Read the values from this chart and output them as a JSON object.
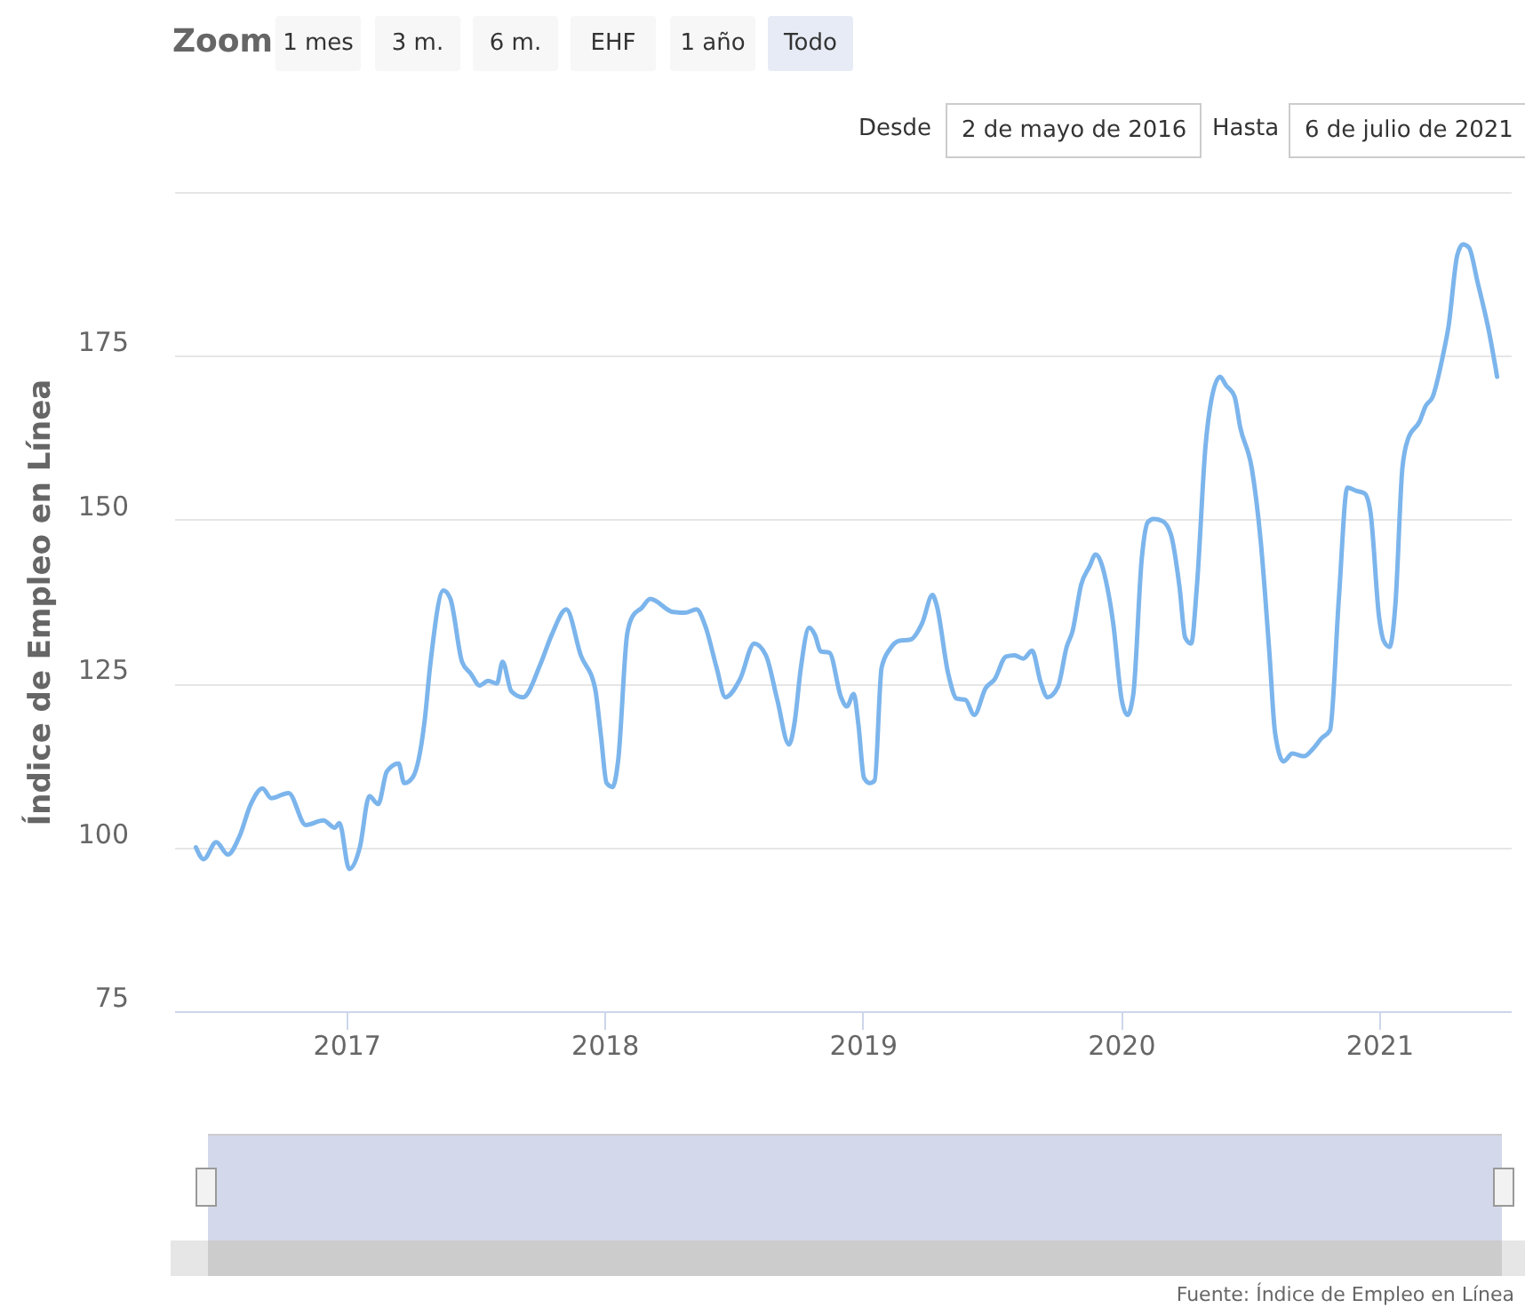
{
  "chart_data": {
    "type": "line",
    "ylabel": "Índice de Empleo en Línea",
    "xlim": [
      2016.333,
      2021.51
    ],
    "xticks": [
      2017,
      2018,
      2019,
      2020,
      2021
    ],
    "ylim": [
      75,
      200
    ],
    "yticks": [
      75,
      100,
      125,
      150,
      175,
      {
        "value": 200,
        "label": null
      }
    ],
    "grid": "y",
    "annotations": [
      "Zoom",
      "1 mes",
      "3 m.",
      "6 m.",
      "EHF",
      "1 año",
      "Todo",
      "Desde",
      "2 de mayo de 2016",
      "Hasta",
      "6 de julio de 2021",
      "Fuente: Índice de Empleo en Línea"
    ],
    "series": [
      {
        "color": "#7cb5ec",
        "x": [
          2016.417,
          2016.447,
          2016.496,
          2016.541,
          2016.585,
          2016.63,
          2016.675,
          2016.709,
          2016.776,
          2016.843,
          2016.911,
          2016.955,
          2016.973,
          2017.011,
          2017.052,
          2017.089,
          2017.123,
          2017.157,
          2017.202,
          2017.224,
          2017.257,
          2017.303,
          2017.325,
          2017.376,
          2017.403,
          2017.448,
          2017.482,
          2017.516,
          2017.549,
          2017.583,
          2017.605,
          2017.639,
          2017.684,
          2017.751,
          2017.795,
          2017.852,
          2017.908,
          2017.963,
          2017.986,
          2018.008,
          2018.031,
          2018.053,
          2018.087,
          2018.109,
          2018.143,
          2018.177,
          2018.266,
          2018.311,
          2018.356,
          2018.39,
          2018.434,
          2018.468,
          2018.524,
          2018.58,
          2018.625,
          2018.669,
          2018.714,
          2018.737,
          2018.759,
          2018.793,
          2018.815,
          2018.837,
          2018.871,
          2018.916,
          2018.938,
          2018.965,
          2018.983,
          2019.005,
          2019.028,
          2019.046,
          2019.073,
          2019.106,
          2019.14,
          2019.185,
          2019.23,
          2019.27,
          2019.286,
          2019.331,
          2019.364,
          2019.398,
          2019.432,
          2019.476,
          2019.51,
          2019.555,
          2019.588,
          2019.622,
          2019.656,
          2019.689,
          2019.716,
          2019.756,
          2019.79,
          2019.812,
          2019.846,
          2019.879,
          2019.902,
          2019.947,
          2019.97,
          2020.003,
          2020.025,
          2020.048,
          2020.081,
          2020.104,
          2020.126,
          2020.16,
          2020.193,
          2020.227,
          2020.249,
          2020.272,
          2020.294,
          2020.328,
          2020.35,
          2020.384,
          2020.407,
          2020.44,
          2020.462,
          2020.507,
          2020.541,
          2020.575,
          2020.597,
          2020.63,
          2020.664,
          2020.709,
          2020.743,
          2020.776,
          2020.81,
          2020.844,
          2020.877,
          2020.911,
          2020.944,
          2020.967,
          2021.0,
          2021.018,
          2021.04,
          2021.063,
          2021.09,
          2021.112,
          2021.157,
          2021.18,
          2021.207,
          2021.247,
          2021.269,
          2021.303,
          2021.325,
          2021.348,
          2021.381,
          2021.426,
          2021.457
        ],
        "values": [
          100.0,
          98.2,
          100.8,
          98.9,
          101.6,
          106.6,
          109.0,
          107.5,
          108.3,
          103.4,
          104.1,
          103.0,
          103.7,
          96.7,
          100.0,
          107.8,
          106.6,
          111.6,
          112.8,
          109.8,
          110.7,
          119.3,
          127.9,
          139.2,
          137.9,
          128.3,
          126.5,
          124.7,
          125.4,
          125.0,
          128.3,
          123.8,
          122.9,
          127.9,
          132.4,
          136.3,
          129.3,
          124.3,
          117.0,
          109.8,
          109.2,
          113.4,
          132.4,
          135.3,
          136.5,
          137.9,
          135.9,
          135.8,
          136.3,
          133.8,
          127.4,
          122.9,
          125.6,
          131.1,
          129.3,
          122.5,
          115.7,
          119.3,
          127.0,
          133.5,
          132.4,
          129.9,
          129.7,
          122.9,
          121.5,
          123.4,
          118.8,
          110.6,
          109.8,
          110.2,
          127.4,
          130.3,
          131.5,
          131.7,
          134.2,
          138.5,
          137.0,
          126.5,
          122.7,
          122.5,
          120.2,
          124.3,
          125.6,
          129.1,
          129.3,
          128.8,
          130.0,
          125.2,
          122.9,
          124.5,
          130.6,
          132.9,
          140.1,
          142.9,
          144.7,
          139.7,
          134.2,
          122.5,
          120.2,
          123.4,
          144.2,
          149.6,
          150.1,
          149.8,
          147.8,
          139.7,
          132.0,
          131.1,
          139.7,
          161.4,
          168.2,
          171.8,
          170.5,
          168.8,
          164.1,
          157.8,
          146.9,
          129.7,
          117.5,
          113.1,
          114.3,
          113.9,
          115.0,
          116.6,
          117.9,
          137.9,
          154.9,
          154.4,
          154.0,
          151.0,
          135.1,
          131.5,
          130.6,
          137.0,
          157.8,
          162.3,
          165.0,
          167.3,
          168.7,
          175.0,
          179.5,
          190.4,
          192.0,
          191.5,
          186.3,
          178.6,
          171.8
        ]
      }
    ]
  }
}
